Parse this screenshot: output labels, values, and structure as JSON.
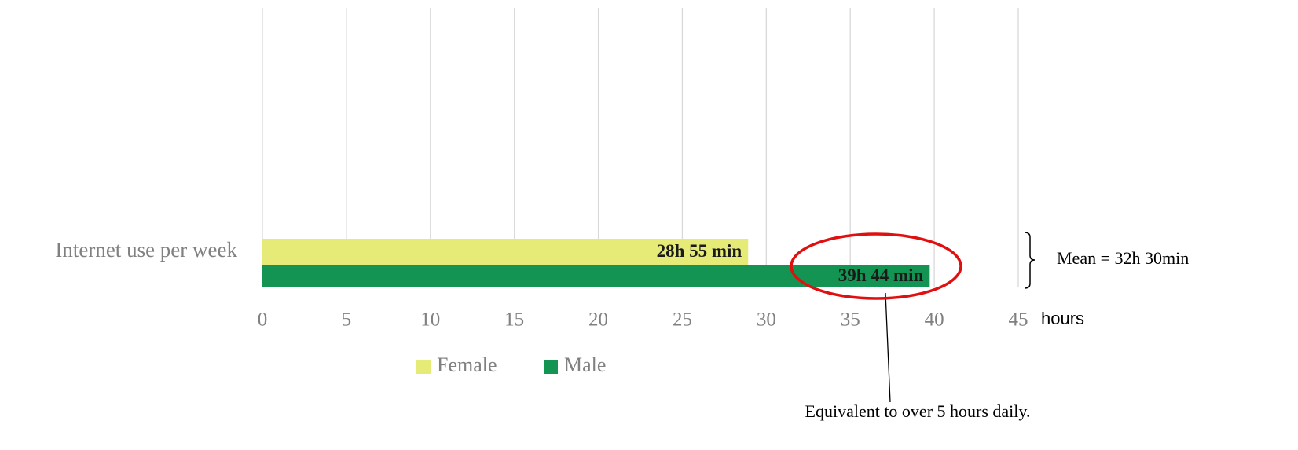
{
  "chart_data": {
    "type": "hbar",
    "categories": [
      "Internet use per week"
    ],
    "series": [
      {
        "name": "Female",
        "color": "#e6ea76",
        "values": [
          28.92
        ],
        "value_labels": [
          "28h 55 min"
        ]
      },
      {
        "name": "Male",
        "color": "#139452",
        "values": [
          39.73
        ],
        "value_labels": [
          "39h 44 min"
        ]
      }
    ],
    "xlim": [
      0,
      45
    ],
    "xticks": [
      0,
      5,
      10,
      15,
      20,
      25,
      30,
      35,
      40,
      45
    ],
    "x_label": "hours",
    "grid": true,
    "annotations": [
      "Mean = 32h 30min",
      "Equivalent to over 5 hours daily."
    ]
  }
}
